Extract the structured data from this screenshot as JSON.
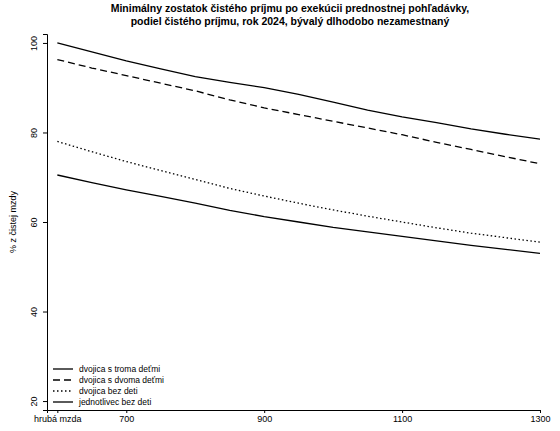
{
  "chart_data": {
    "type": "line",
    "title": [
      "Minimálny zostatok čistého príjmu po exekúcii prednostnej pohľadávky,",
      "podiel čistého príjmu, rok 2024, bývalý dlhodobo nezamestnaný"
    ],
    "y_label": "% z čistej mzdy",
    "x": [
      600,
      650,
      700,
      750,
      800,
      850,
      900,
      950,
      1000,
      1050,
      1100,
      1150,
      1200,
      1250,
      1300
    ],
    "series": [
      {
        "name": "dvojica s troma deťmi",
        "color": "#000000",
        "line_style": "solid",
        "values": [
          100,
          98,
          96,
          94.2,
          92.5,
          91.2,
          90,
          88.5,
          86.8,
          85,
          83.5,
          82.2,
          80.8,
          79.6,
          78.5
        ]
      },
      {
        "name": "dvojica s dvoma deťmi",
        "color": "#000000",
        "line_style": "dashed",
        "values": [
          96.3,
          94.4,
          92.7,
          91,
          89.3,
          87.3,
          85.5,
          84,
          82.5,
          81,
          79.5,
          77.8,
          76.2,
          74.6,
          73
        ]
      },
      {
        "name": "dvojica bez deti",
        "color": "#000000",
        "line_style": "dotted",
        "values": [
          78,
          75.7,
          73.5,
          71.5,
          69.5,
          67.5,
          65.8,
          64.2,
          62.7,
          61.3,
          60,
          58.7,
          57.5,
          56.5,
          55.5
        ]
      },
      {
        "name": "jednotlivec bez deti",
        "color": "#000000",
        "line_style": "solid",
        "values": [
          70.5,
          68.8,
          67.2,
          65.7,
          64.2,
          62.6,
          61.2,
          60,
          58.8,
          57.8,
          56.8,
          55.8,
          54.8,
          53.9,
          53
        ]
      }
    ],
    "xlim": [
      585,
      1300
    ],
    "xticks": [
      {
        "value": 600,
        "label": "hrubá mzda"
      },
      700,
      900,
      1100,
      1300
    ],
    "ylim": [
      18,
      102
    ],
    "yticks": [
      20,
      40,
      60,
      80,
      100
    ],
    "grid": false,
    "legend": "bottom-left"
  }
}
